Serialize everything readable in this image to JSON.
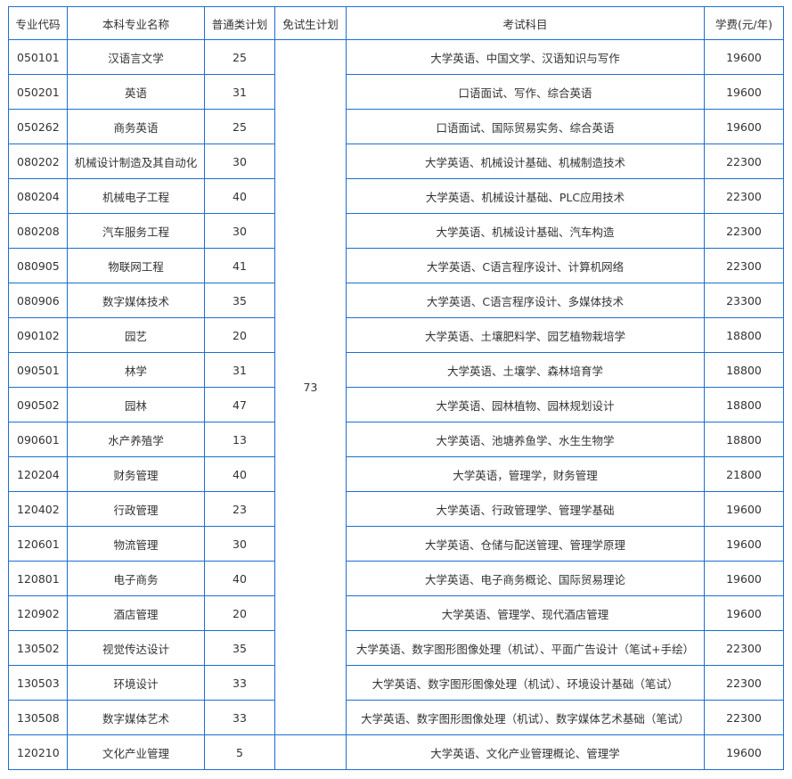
{
  "headers": [
    "专业代码",
    "本科专业名称",
    "普通类计划",
    "免试生计划",
    "考试科目",
    "学费(元/年)"
  ],
  "exempt_plan_merged": "73",
  "rows": [
    {
      "code": "050101",
      "name": "汉语言文学",
      "plan": "25",
      "subjects": "大学英语、中国文学、汉语知识与写作",
      "fee": "19600"
    },
    {
      "code": "050201",
      "name": "英语",
      "plan": "31",
      "subjects": "口语面试、写作、综合英语",
      "fee": "19600"
    },
    {
      "code": "050262",
      "name": "商务英语",
      "plan": "25",
      "subjects": "口语面试、国际贸易实务、综合英语",
      "fee": "19600"
    },
    {
      "code": "080202",
      "name": "机械设计制造及其自动化",
      "plan": "30",
      "subjects": "大学英语、机械设计基础、机械制造技术",
      "fee": "22300"
    },
    {
      "code": "080204",
      "name": "机械电子工程",
      "plan": "40",
      "subjects": "大学英语、机械设计基础、PLC应用技术",
      "fee": "22300"
    },
    {
      "code": "080208",
      "name": "汽车服务工程",
      "plan": "30",
      "subjects": "大学英语、机械设计基础、汽车构造",
      "fee": "22300"
    },
    {
      "code": "080905",
      "name": "物联网工程",
      "plan": "41",
      "subjects": "大学英语、C语言程序设计、计算机网络",
      "fee": "22300"
    },
    {
      "code": "080906",
      "name": "数字媒体技术",
      "plan": "35",
      "subjects": "大学英语、C语言程序设计、多媒体技术",
      "fee": "23300"
    },
    {
      "code": "090102",
      "name": "园艺",
      "plan": "20",
      "subjects": "大学英语、土壤肥料学、园艺植物栽培学",
      "fee": "18800"
    },
    {
      "code": "090501",
      "name": "林学",
      "plan": "31",
      "subjects": "大学英语、土壤学、森林培育学",
      "fee": "18800"
    },
    {
      "code": "090502",
      "name": "园林",
      "plan": "47",
      "subjects": "大学英语、园林植物、园林规划设计",
      "fee": "18800"
    },
    {
      "code": "090601",
      "name": "水产养殖学",
      "plan": "13",
      "subjects": "大学英语、池塘养鱼学、水生生物学",
      "fee": "18800"
    },
    {
      "code": "120204",
      "name": "财务管理",
      "plan": "40",
      "subjects": "大学英语，管理学，财务管理",
      "fee": "21800"
    },
    {
      "code": "120402",
      "name": "行政管理",
      "plan": "23",
      "subjects": "大学英语、行政管理学、管理学基础",
      "fee": "19600"
    },
    {
      "code": "120601",
      "name": "物流管理",
      "plan": "30",
      "subjects": "大学英语、仓储与配送管理、管理学原理",
      "fee": "19600"
    },
    {
      "code": "120801",
      "name": "电子商务",
      "plan": "40",
      "subjects": "大学英语、电子商务概论、国际贸易理论",
      "fee": "19600"
    },
    {
      "code": "120902",
      "name": "酒店管理",
      "plan": "20",
      "subjects": "大学英语、管理学、现代酒店管理",
      "fee": "19600"
    },
    {
      "code": "130502",
      "name": "视觉传达设计",
      "plan": "35",
      "subjects": "大学英语、数字图形图像处理（机试）、平面广告设计（笔试+手绘）",
      "fee": "22300"
    },
    {
      "code": "130503",
      "name": "环境设计",
      "plan": "33",
      "subjects": "大学英语、数字图形图像处理（机试）、环境设计基础（笔试）",
      "fee": "22300"
    },
    {
      "code": "130508",
      "name": "数字媒体艺术",
      "plan": "33",
      "subjects": "大学英语、数字图形图像处理（机试）、数字媒体艺术基础（笔试）",
      "fee": "22300"
    },
    {
      "code": "120210",
      "name": "文化产业管理",
      "plan": "5",
      "subjects": "大学英语、文化产业管理概论、管理学",
      "fee": "19600"
    }
  ]
}
